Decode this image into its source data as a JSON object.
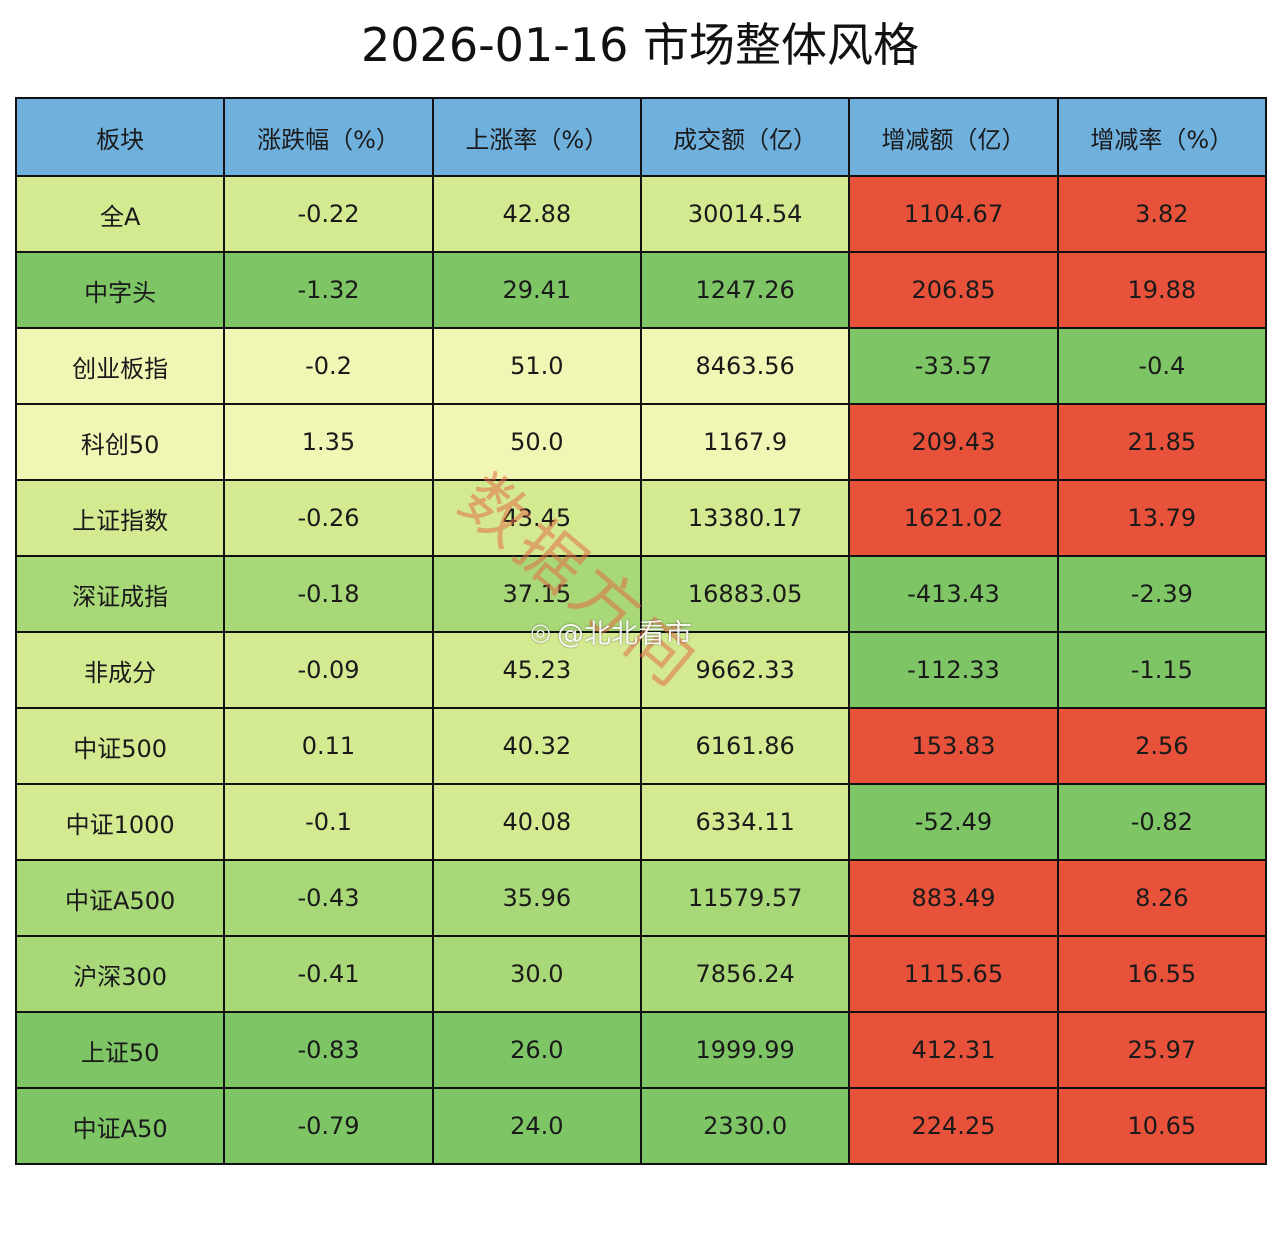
{
  "title": "2026-01-16  市场整体风格",
  "watermark": {
    "stamp": "数据方向",
    "handle": "@北北看市",
    "icon": "weibo-icon"
  },
  "colors": {
    "header": "#6fb0dd",
    "up": "#e8523a",
    "down_strong": "#7dc565",
    "down_mid": "#a8d877",
    "down_light": "#d3ea91",
    "neutral": "#f1f6b4"
  },
  "table": {
    "headers": [
      "板块",
      "涨跌幅（%）",
      "上涨率（%）",
      "成交额（亿）",
      "增减额（亿）",
      "增减率（%）"
    ],
    "rows": [
      {
        "cells": [
          "全A",
          "-0.22",
          "42.88",
          "30014.54",
          "1104.67",
          "3.82"
        ],
        "colors": [
          "#d3ea91",
          "#d3ea91",
          "#d3ea91",
          "#d3ea91",
          "#e8523a",
          "#e8523a"
        ]
      },
      {
        "cells": [
          "中字头",
          "-1.32",
          "29.41",
          "1247.26",
          "206.85",
          "19.88"
        ],
        "colors": [
          "#7dc565",
          "#7dc565",
          "#7dc565",
          "#7dc565",
          "#e8523a",
          "#e8523a"
        ]
      },
      {
        "cells": [
          "创业板指",
          "-0.2",
          "51.0",
          "8463.56",
          "-33.57",
          "-0.4"
        ],
        "colors": [
          "#f1f6b4",
          "#f1f6b4",
          "#f1f6b4",
          "#f1f6b4",
          "#7dc565",
          "#7dc565"
        ]
      },
      {
        "cells": [
          "科创50",
          "1.35",
          "50.0",
          "1167.9",
          "209.43",
          "21.85"
        ],
        "colors": [
          "#f1f6b4",
          "#f1f6b4",
          "#f1f6b4",
          "#f1f6b4",
          "#e8523a",
          "#e8523a"
        ]
      },
      {
        "cells": [
          "上证指数",
          "-0.26",
          "43.45",
          "13380.17",
          "1621.02",
          "13.79"
        ],
        "colors": [
          "#d3ea91",
          "#d3ea91",
          "#d3ea91",
          "#d3ea91",
          "#e8523a",
          "#e8523a"
        ]
      },
      {
        "cells": [
          "深证成指",
          "-0.18",
          "37.15",
          "16883.05",
          "-413.43",
          "-2.39"
        ],
        "colors": [
          "#a8d877",
          "#a8d877",
          "#a8d877",
          "#a8d877",
          "#7dc565",
          "#7dc565"
        ]
      },
      {
        "cells": [
          "非成分",
          "-0.09",
          "45.23",
          "9662.33",
          "-112.33",
          "-1.15"
        ],
        "colors": [
          "#d3ea91",
          "#d3ea91",
          "#d3ea91",
          "#d3ea91",
          "#7dc565",
          "#7dc565"
        ]
      },
      {
        "cells": [
          "中证500",
          "0.11",
          "40.32",
          "6161.86",
          "153.83",
          "2.56"
        ],
        "colors": [
          "#d3ea91",
          "#d3ea91",
          "#d3ea91",
          "#d3ea91",
          "#e8523a",
          "#e8523a"
        ]
      },
      {
        "cells": [
          "中证1000",
          "-0.1",
          "40.08",
          "6334.11",
          "-52.49",
          "-0.82"
        ],
        "colors": [
          "#d3ea91",
          "#d3ea91",
          "#d3ea91",
          "#d3ea91",
          "#7dc565",
          "#7dc565"
        ]
      },
      {
        "cells": [
          "中证A500",
          "-0.43",
          "35.96",
          "11579.57",
          "883.49",
          "8.26"
        ],
        "colors": [
          "#a8d877",
          "#a8d877",
          "#a8d877",
          "#a8d877",
          "#e8523a",
          "#e8523a"
        ]
      },
      {
        "cells": [
          "沪深300",
          "-0.41",
          "30.0",
          "7856.24",
          "1115.65",
          "16.55"
        ],
        "colors": [
          "#a8d877",
          "#a8d877",
          "#a8d877",
          "#a8d877",
          "#e8523a",
          "#e8523a"
        ]
      },
      {
        "cells": [
          "上证50",
          "-0.83",
          "26.0",
          "1999.99",
          "412.31",
          "25.97"
        ],
        "colors": [
          "#7dc565",
          "#7dc565",
          "#7dc565",
          "#7dc565",
          "#e8523a",
          "#e8523a"
        ]
      },
      {
        "cells": [
          "中证A50",
          "-0.79",
          "24.0",
          "2330.0",
          "224.25",
          "10.65"
        ],
        "colors": [
          "#7dc565",
          "#7dc565",
          "#7dc565",
          "#7dc565",
          "#e8523a",
          "#e8523a"
        ]
      }
    ]
  }
}
